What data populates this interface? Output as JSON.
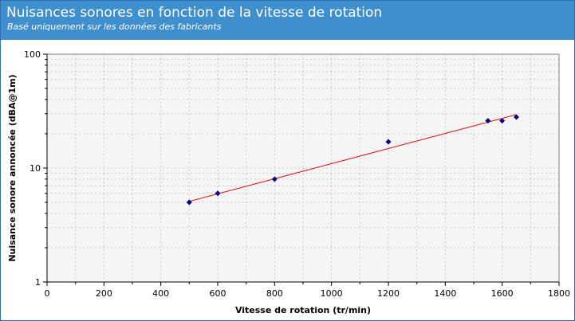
{
  "header": {
    "title": "Nuisances sonores en fonction de la vitesse de rotation",
    "subtitle": "Basé uniquement sur les données des fabricants"
  },
  "colors": {
    "header_bg": "#3f8fcf",
    "plot_bg": "#f5f5f5",
    "marker": "#000080",
    "trendline": "#e00000"
  },
  "chart_data": {
    "type": "scatter",
    "xlabel": "Vitesse de rotation (tr/min)",
    "ylabel": "Nuisance sonore annoncée (dBA@1m)",
    "xlim": [
      0,
      1800
    ],
    "ylim": [
      1,
      100
    ],
    "yscale": "log",
    "grid": true,
    "legend": "none",
    "x_ticks": [
      0,
      200,
      400,
      600,
      800,
      1000,
      1200,
      1400,
      1600,
      1800
    ],
    "y_ticks": [
      1,
      10,
      100
    ],
    "series": [
      {
        "points": [
          {
            "x": 500,
            "y": 5
          },
          {
            "x": 600,
            "y": 6
          },
          {
            "x": 800,
            "y": 8
          },
          {
            "x": 1200,
            "y": 17
          },
          {
            "x": 1550,
            "y": 26
          },
          {
            "x": 1600,
            "y": 26
          },
          {
            "x": 1650,
            "y": 28
          }
        ]
      }
    ],
    "trendline": {
      "type": "exponential",
      "x": [
        500,
        1650
      ],
      "y": [
        5.1,
        29.5
      ]
    }
  }
}
